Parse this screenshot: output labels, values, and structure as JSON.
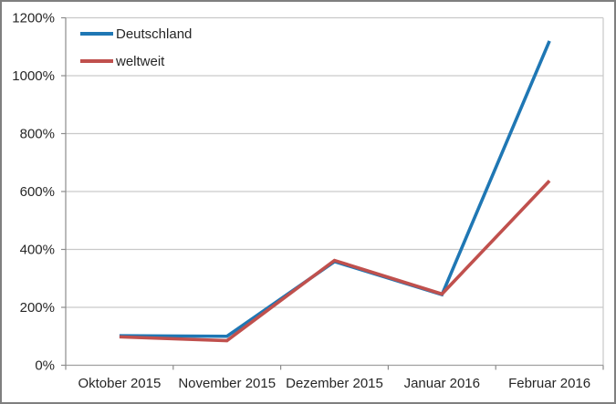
{
  "chart_data": {
    "type": "line",
    "title": "",
    "categories": [
      "Oktober 2015",
      "November 2015",
      "Dezember 2015",
      "Januar 2016",
      "Februar 2016"
    ],
    "series": [
      {
        "name": "Deutschland",
        "color": "#1F77B4",
        "values": [
          102,
          100,
          358,
          244,
          1120
        ]
      },
      {
        "name": "weltweit",
        "color": "#C0504D",
        "values": [
          98,
          85,
          362,
          246,
          637
        ]
      }
    ],
    "xlabel": "",
    "ylabel": "",
    "ylim": [
      0,
      1200
    ],
    "yticks": [
      0,
      200,
      400,
      600,
      800,
      1000,
      1200
    ],
    "ytick_labels": [
      "0%",
      "200%",
      "400%",
      "600%",
      "800%",
      "1000%",
      "1200%"
    ],
    "grid": "horizontal",
    "legend_position": "top-left-inside"
  },
  "colors": {
    "series_blue": "#1F77B4",
    "series_red": "#C0504D",
    "gridline": "#C9C9C9",
    "axis": "#A0A0A0",
    "tick": "#8C8C8C",
    "frame_border": "#7F7F7F",
    "text": "#262626",
    "background": "#FFFFFF"
  }
}
